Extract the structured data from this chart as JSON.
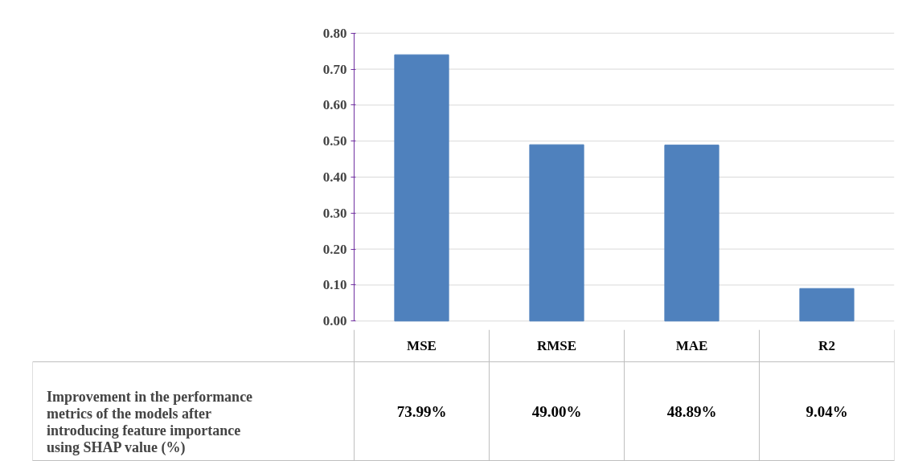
{
  "chart_data": {
    "type": "bar",
    "categories": [
      "MSE",
      "RMSE",
      "MAE",
      "R2"
    ],
    "series": [
      {
        "name": "Improvement in the performance metrics of the models after introducing feature importance using SHAP value (%)",
        "color": "#4f81bd",
        "values": [
          0.7399,
          0.49,
          0.4889,
          0.0904
        ],
        "value_labels": [
          "73.99%",
          "49.00%",
          "48.89%",
          "9.04%"
        ]
      }
    ],
    "ylim": [
      0,
      0.8
    ],
    "yticks": [
      {
        "value": 0,
        "label": "0.00"
      },
      {
        "value": 0.1,
        "label": "0.10"
      },
      {
        "value": 0.2,
        "label": "0.20"
      },
      {
        "value": 0.3,
        "label": "0.30"
      },
      {
        "value": 0.4,
        "label": "0.40"
      },
      {
        "value": 0.5,
        "label": "0.50"
      },
      {
        "value": 0.6,
        "label": "0.60"
      },
      {
        "value": 0.7,
        "label": "0.70"
      },
      {
        "value": 0.8,
        "label": "0.80"
      }
    ],
    "grid": "y",
    "legend": "bottom"
  }
}
